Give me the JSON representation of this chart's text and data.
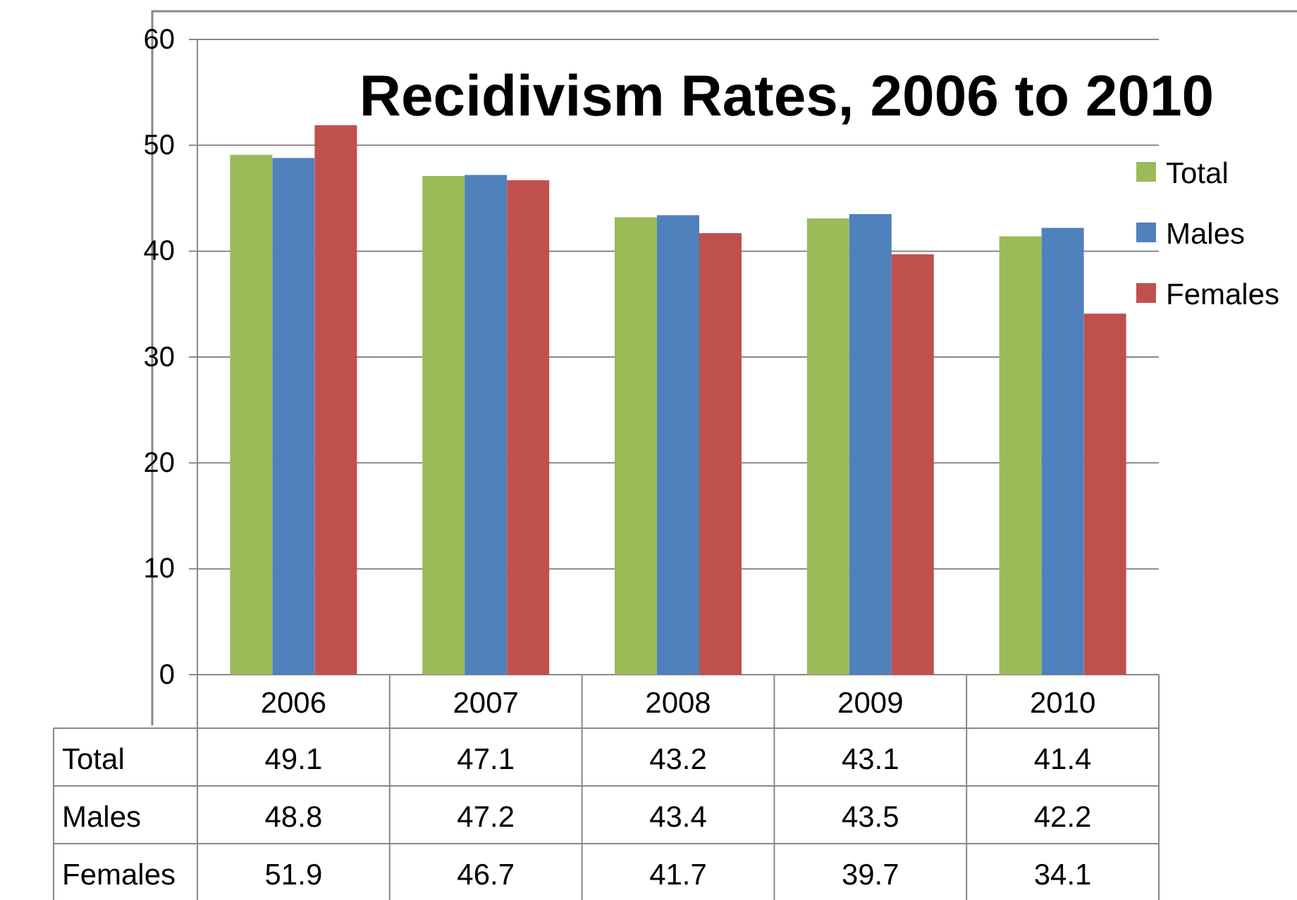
{
  "chart_data": {
    "type": "bar",
    "title": "Recidivism Rates, 2006 to 2010",
    "categories": [
      "2006",
      "2007",
      "2008",
      "2009",
      "2010"
    ],
    "series": [
      {
        "name": "Total",
        "color": "#9bbb59",
        "values": [
          49.1,
          47.1,
          43.2,
          43.1,
          41.4
        ]
      },
      {
        "name": "Males",
        "color": "#4f81bd",
        "values": [
          48.8,
          47.2,
          43.4,
          43.5,
          42.2
        ]
      },
      {
        "name": "Females",
        "color": "#c0504d",
        "values": [
          51.9,
          46.7,
          41.7,
          39.7,
          34.1
        ]
      }
    ],
    "ylim": [
      0,
      60
    ],
    "yticks": [
      0,
      10,
      20,
      30,
      40,
      50,
      60
    ],
    "grid": "y",
    "legend": "right",
    "data_labels": true
  }
}
